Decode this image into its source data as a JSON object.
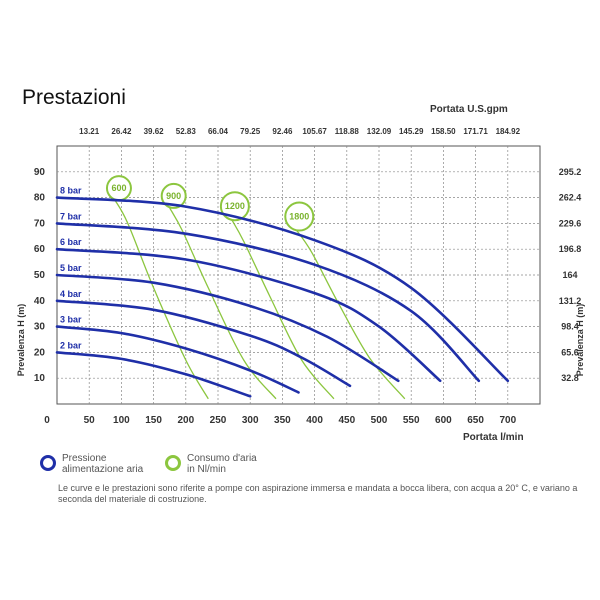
{
  "title": "Prestazioni",
  "colors": {
    "pressure": "#1f2fa8",
    "air": "#8cc63f",
    "grid": "#888888",
    "text": "#333333"
  },
  "chart_data": {
    "type": "line",
    "title": "Prestazioni",
    "xlabel": "Portata  l/min",
    "x2label": "Portata U.S.gpm",
    "ylabel": "Prevalenza H (m)",
    "y2label": "Prevalenza H (m)",
    "xlim": [
      0,
      750
    ],
    "ylim": [
      0,
      100
    ],
    "x_ticks": [
      0,
      50,
      100,
      150,
      200,
      250,
      300,
      350,
      400,
      450,
      500,
      550,
      600,
      650,
      700
    ],
    "y_ticks": [
      10,
      20,
      30,
      40,
      50,
      60,
      70,
      80,
      90
    ],
    "x2_ticks": [
      {
        "value": 50,
        "label": "13.21"
      },
      {
        "value": 100,
        "label": "26.42"
      },
      {
        "value": 150,
        "label": "39.62"
      },
      {
        "value": 200,
        "label": "52.83"
      },
      {
        "value": 250,
        "label": "66.04"
      },
      {
        "value": 300,
        "label": "79.25"
      },
      {
        "value": 350,
        "label": "92.46"
      },
      {
        "value": 400,
        "label": "105.67"
      },
      {
        "value": 450,
        "label": "118.88"
      },
      {
        "value": 500,
        "label": "132.09"
      },
      {
        "value": 550,
        "label": "145.29"
      },
      {
        "value": 600,
        "label": "158.50"
      },
      {
        "value": 650,
        "label": "171.71"
      },
      {
        "value": 700,
        "label": "184.92"
      }
    ],
    "y2_ticks": [
      {
        "value": 10,
        "label": "32.8"
      },
      {
        "value": 20,
        "label": "65.6"
      },
      {
        "value": 30,
        "label": "98.4"
      },
      {
        "value": 40,
        "label": "131.2"
      },
      {
        "value": 50,
        "label": "164"
      },
      {
        "value": 60,
        "label": "196.8"
      },
      {
        "value": 70,
        "label": "229.6"
      },
      {
        "value": 80,
        "label": "262.4"
      },
      {
        "value": 90,
        "label": "295.2"
      }
    ],
    "grid": true,
    "series": [
      {
        "name": "2 bar",
        "x": [
          0,
          100,
          200,
          300
        ],
        "y": [
          20,
          17.5,
          11.5,
          3
        ]
      },
      {
        "name": "3 bar",
        "x": [
          0,
          100,
          200,
          300,
          375
        ],
        "y": [
          30,
          27.5,
          21.5,
          13,
          4.5
        ]
      },
      {
        "name": "4 bar",
        "x": [
          0,
          150,
          300,
          380,
          455
        ],
        "y": [
          40,
          36.5,
          26.5,
          18,
          7
        ]
      },
      {
        "name": "5 bar",
        "x": [
          0,
          150,
          300,
          420,
          530
        ],
        "y": [
          50,
          47,
          38,
          26,
          9
        ]
      },
      {
        "name": "6 bar",
        "x": [
          0,
          200,
          400,
          500,
          595
        ],
        "y": [
          60,
          56,
          43,
          30,
          9
        ]
      },
      {
        "name": "7 bar",
        "x": [
          0,
          200,
          400,
          550,
          655
        ],
        "y": [
          70,
          66,
          54,
          36,
          9
        ]
      },
      {
        "name": "8 bar",
        "x": [
          0,
          200,
          400,
          550,
          700
        ],
        "y": [
          80,
          76.5,
          63.5,
          45,
          9
        ]
      }
    ],
    "air_consumption": [
      {
        "label": "600",
        "x": [
          90,
          110,
          150,
          200,
          235
        ],
        "y": [
          79,
          70,
          45,
          17,
          2
        ]
      },
      {
        "label": "900",
        "x": [
          175,
          195,
          235,
          290,
          340
        ],
        "y": [
          76,
          67,
          45,
          17,
          2
        ]
      },
      {
        "label": "1200",
        "x": [
          270,
          290,
          330,
          380,
          430
        ],
        "y": [
          72,
          63,
          42,
          17,
          2
        ]
      },
      {
        "label": "1800",
        "x": [
          370,
          395,
          435,
          485,
          540
        ],
        "y": [
          68,
          59,
          40,
          18,
          2
        ]
      }
    ]
  },
  "legend": {
    "pressure": "Pressione\nalimentazione aria",
    "air": "Consumo d'aria\nin Nl/min"
  },
  "note": "Le curve e le prestazioni sono riferite a pompe con aspirazione immersa e mandata a bocca libera, con acqua a 20° C, e variano a seconda del materiale di costruzione."
}
